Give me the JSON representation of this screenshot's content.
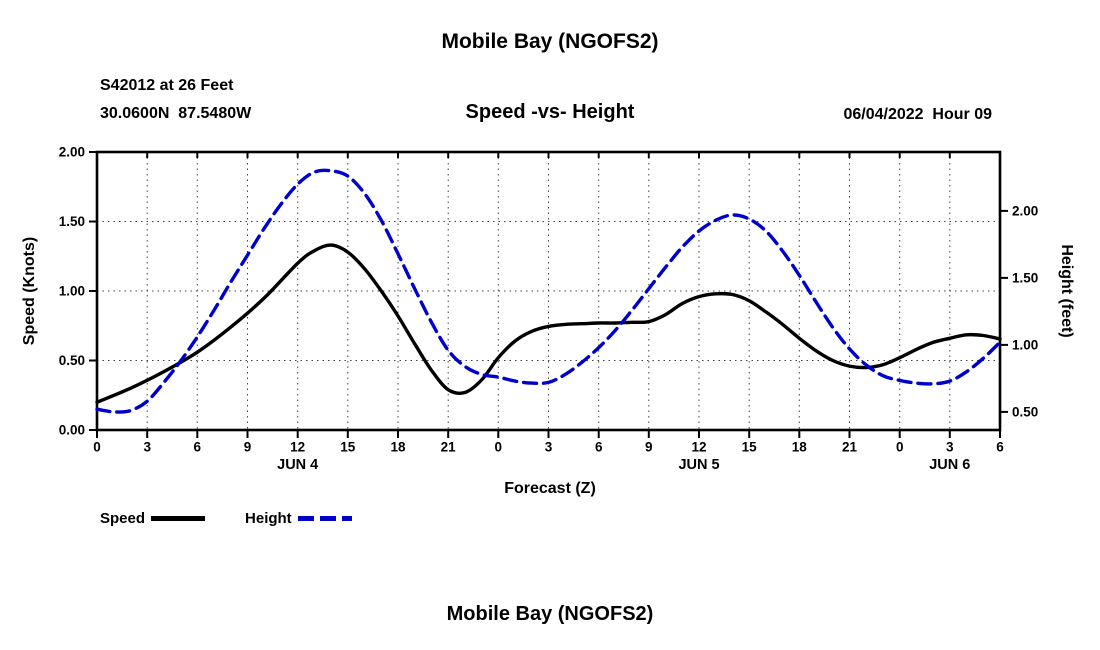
{
  "header": {
    "title": "Mobile Bay (NGOFS2)",
    "station_line1": "S42012 at 26 Feet",
    "station_line2": "30.0600N  87.5480W",
    "subtitle": "Speed -vs- Height",
    "datetime": "06/04/2022  Hour 09"
  },
  "footer": {
    "title": "Mobile Bay (NGOFS2)"
  },
  "legend": {
    "speed_label": "Speed",
    "height_label": "Height"
  },
  "colors": {
    "speed_line": "#000000",
    "height_line": "#0000cc",
    "text": "#000000",
    "background": "#ffffff"
  },
  "chart_data": {
    "type": "line",
    "title": "Mobile Bay (NGOFS2)",
    "subtitle": "Speed -vs- Height",
    "xlabel": "Forecast (Z)",
    "ylabel_left": "Speed (Knots)",
    "ylabel_right": "Height (feet)",
    "x_range": [
      0,
      54
    ],
    "x_tick_hours": [
      0,
      3,
      6,
      9,
      12,
      15,
      18,
      21,
      24,
      27,
      30,
      33,
      36,
      39,
      42,
      45,
      48,
      51,
      54
    ],
    "x_tick_labels": [
      "0",
      "3",
      "6",
      "9",
      "12",
      "15",
      "18",
      "21",
      "0",
      "3",
      "6",
      "9",
      "12",
      "15",
      "18",
      "21",
      "0",
      "3",
      "6"
    ],
    "date_labels": [
      {
        "label": "JUN 4",
        "hour": 12
      },
      {
        "label": "JUN 5",
        "hour": 36
      },
      {
        "label": "JUN 6",
        "hour": 51
      }
    ],
    "left_axis": {
      "min": 0.0,
      "max": 2.0,
      "ticks": [
        0.0,
        0.5,
        1.0,
        1.5,
        2.0
      ],
      "tick_labels": [
        "0.00",
        "0.50",
        "1.00",
        "1.50",
        "2.00"
      ]
    },
    "right_axis": {
      "min": 0.365,
      "max": 2.44,
      "ticks": [
        0.5,
        1.0,
        1.5,
        2.0
      ],
      "tick_labels": [
        "0.50",
        "1.00",
        "1.50",
        "2.00"
      ]
    },
    "grid": true,
    "legend_position": "bottom-left",
    "series": [
      {
        "name": "Speed",
        "axis": "left",
        "style": "solid",
        "color": "#000000",
        "x": [
          0,
          2,
          4,
          6,
          8,
          10,
          12,
          13,
          14,
          15,
          16,
          17,
          18,
          19,
          20,
          21,
          22,
          23,
          24,
          25,
          26,
          27,
          28,
          29,
          30,
          31,
          32,
          33,
          34,
          35,
          36,
          37,
          38,
          39,
          40,
          41,
          42,
          43,
          44,
          45,
          46,
          47,
          48,
          49,
          50,
          51,
          52,
          53,
          54
        ],
        "y": [
          0.2,
          0.3,
          0.42,
          0.56,
          0.74,
          0.95,
          1.2,
          1.29,
          1.33,
          1.28,
          1.16,
          1.0,
          0.82,
          0.62,
          0.43,
          0.29,
          0.27,
          0.36,
          0.52,
          0.64,
          0.71,
          0.745,
          0.76,
          0.765,
          0.77,
          0.77,
          0.775,
          0.78,
          0.83,
          0.91,
          0.96,
          0.98,
          0.975,
          0.93,
          0.85,
          0.76,
          0.66,
          0.57,
          0.5,
          0.46,
          0.45,
          0.47,
          0.52,
          0.58,
          0.63,
          0.66,
          0.685,
          0.68,
          0.655
        ]
      },
      {
        "name": "Height",
        "axis": "right",
        "style": "dashed",
        "color": "#0000cc",
        "x": [
          0,
          1,
          2,
          3,
          4,
          5,
          6,
          7,
          8,
          9,
          10,
          11,
          12,
          13,
          14,
          15,
          16,
          17,
          18,
          19,
          20,
          21,
          22,
          23,
          24,
          25,
          26,
          27,
          28,
          29,
          30,
          31,
          32,
          33,
          34,
          35,
          36,
          37,
          38,
          39,
          40,
          41,
          42,
          43,
          44,
          45,
          46,
          47,
          48,
          49,
          50,
          51,
          52,
          53,
          54
        ],
        "y": [
          0.52,
          0.5,
          0.51,
          0.58,
          0.72,
          0.88,
          1.06,
          1.26,
          1.47,
          1.67,
          1.87,
          2.05,
          2.2,
          2.29,
          2.3,
          2.26,
          2.13,
          1.93,
          1.68,
          1.42,
          1.17,
          0.96,
          0.84,
          0.78,
          0.76,
          0.73,
          0.715,
          0.72,
          0.78,
          0.87,
          0.98,
          1.11,
          1.26,
          1.42,
          1.58,
          1.73,
          1.85,
          1.93,
          1.97,
          1.94,
          1.85,
          1.7,
          1.52,
          1.32,
          1.13,
          0.97,
          0.85,
          0.77,
          0.735,
          0.715,
          0.71,
          0.73,
          0.8,
          0.9,
          1.02
        ]
      }
    ]
  }
}
